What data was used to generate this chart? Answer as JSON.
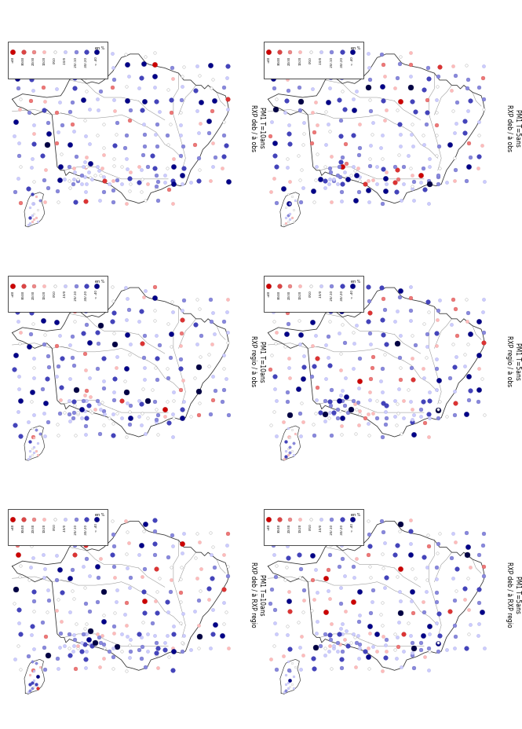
{
  "figure_size": [
    6.65,
    9.29
  ],
  "dpi": 100,
  "bg_color": "#ffffff",
  "subplot_titles": [
    [
      "PM1 T=10ans\nRXP deb / à obs",
      "PM1 T=5ans\nRXP deb / à obs"
    ],
    [
      "PM1 T=10ans\nRXP regio / à obs",
      "PM1 T=5ans\nRXP regio / à obs"
    ],
    [
      "PM1 T=10ans\nRXP deb / à RXP regio",
      "PM1 T=5ans\nRXP deb / à RXP regio"
    ]
  ],
  "legend_40": {
    "labels": [
      "> 40",
      "30 / 40",
      "20 / 30",
      "10 / 20",
      "0 / 10",
      "-10 / 0",
      "-20 / -10",
      "-30 / -20",
      "< -40"
    ],
    "colors": [
      "#cc0000",
      "#dd4444",
      "#ee8888",
      "#ffbbbb",
      "#ffffff",
      "#ccccff",
      "#8888dd",
      "#4444bb",
      "#000088"
    ],
    "edge_colors": [
      "#cc0000",
      "#dd4444",
      "#ee8888",
      "#ffbbbb",
      "#aaaaaa",
      "#8888bb",
      "#6666bb",
      "#3333aa",
      "#000088"
    ],
    "sizes": [
      6.5,
      5.5,
      4.5,
      3.5,
      3.0,
      3.0,
      3.5,
      4.5,
      6.5
    ]
  },
  "legend_30_right": {
    "labels": [
      "< -30",
      "-20 / -30",
      "-10 / -20",
      "0 / -10",
      "0 / 10",
      "10 / 20",
      "20 / 30",
      "> 30"
    ],
    "colors": [
      "#000088",
      "#4444bb",
      "#8888dd",
      "#ccccff",
      "#ffffff",
      "#ffbbbb",
      "#ee8888",
      "#cc0000"
    ],
    "sizes": [
      6.5,
      4.5,
      3.5,
      3.0,
      3.0,
      3.5,
      4.5,
      6.5
    ]
  },
  "map_lw": 0.6,
  "map_color": "#333333",
  "internal_lw": 0.4,
  "internal_color": "#555555"
}
